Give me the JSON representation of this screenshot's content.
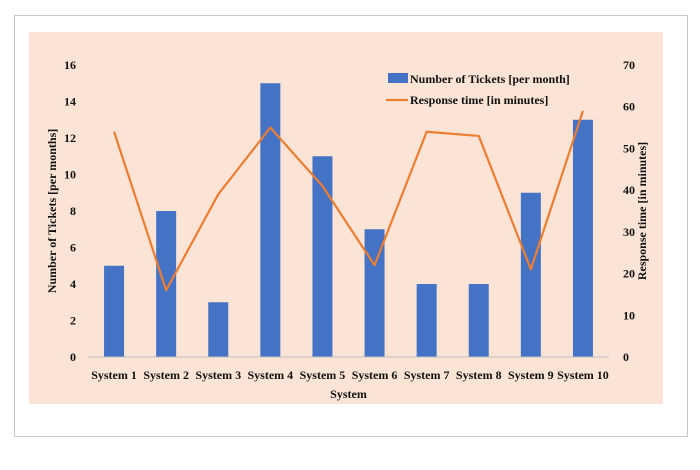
{
  "chart_data": {
    "type": "bar",
    "categories": [
      "System 1",
      "System 2",
      "System 3",
      "System 4",
      "System 5",
      "System 6",
      "System 7",
      "System 8",
      "System 9",
      "System 10"
    ],
    "series": [
      {
        "name": "Number of Tickets [per month]",
        "type": "bar",
        "axis": "left",
        "values": [
          5,
          8,
          3,
          15,
          11,
          7,
          4,
          4,
          9,
          13
        ]
      },
      {
        "name": "Response time [in minutes]",
        "type": "line",
        "axis": "right",
        "values": [
          54,
          16,
          39,
          55,
          41,
          22,
          54,
          53,
          21,
          59
        ]
      }
    ],
    "xlabel": "System",
    "ylabel": "Number of Tickets  [per months]",
    "y2label": "Response time [in minutes]",
    "ylim": [
      0,
      16
    ],
    "y2lim": [
      0,
      70
    ],
    "yticks": [
      0,
      2,
      4,
      6,
      8,
      10,
      12,
      14,
      16
    ],
    "y2ticks": [
      0,
      10,
      20,
      30,
      40,
      50,
      60,
      70
    ],
    "legend": "top-right",
    "grid": false,
    "colors": {
      "bar": "#4472c4",
      "line": "#ed7d31",
      "plot_background": "#fbe4d5"
    }
  }
}
